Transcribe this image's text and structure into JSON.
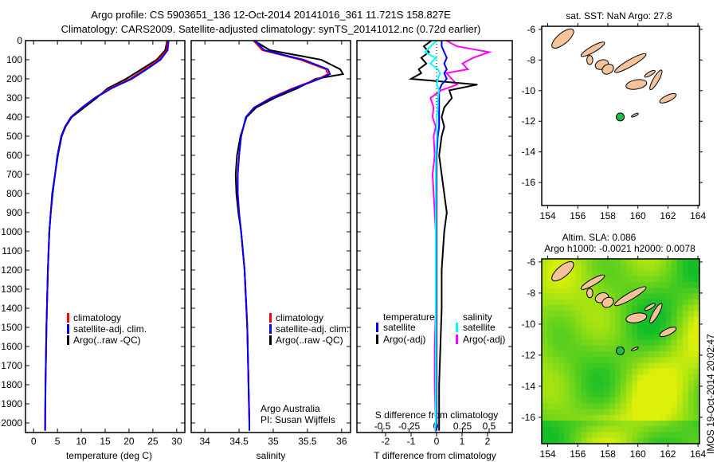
{
  "title_line1": "Argo profile: CS 5903651_136 12-Oct-2014 20141016_361 11.721S 158.827E",
  "title_line2": "Climatology: CARS2009. Satellite-adjusted climatology: synTS_20141012.nc (0.72d earlier)",
  "colors": {
    "climatology": "#ff0000",
    "satellite": "#0000ff",
    "argo": "#000000",
    "sal_satellite": "#00ffff",
    "sal_argo": "#ff00ff"
  },
  "chart_data": [
    {
      "type": "line",
      "xlabel": "temperature (deg C)",
      "ylabel": "",
      "xlim": [
        -1.7,
        31.7
      ],
      "ylim": [
        2050,
        0
      ],
      "xticks": [
        "0",
        "5",
        "10",
        "15",
        "20",
        "25",
        "30"
      ],
      "xtick_values": [
        0,
        5,
        10,
        15,
        20,
        25,
        30
      ],
      "yticks": [
        "0",
        "100",
        "200",
        "300",
        "400",
        "500",
        "600",
        "700",
        "800",
        "900",
        "1000",
        "1100",
        "1200",
        "1300",
        "1400",
        "1500",
        "1600",
        "1700",
        "1800",
        "1900",
        "2000"
      ],
      "ytick_values": [
        0,
        100,
        200,
        300,
        400,
        500,
        600,
        700,
        800,
        900,
        1000,
        1100,
        1200,
        1300,
        1400,
        1500,
        1600,
        1700,
        1800,
        1900,
        2000
      ],
      "legend": [
        "climatology",
        "satellite-adj. clim.",
        "Argo(..raw -QC)"
      ],
      "depth": [
        0,
        50,
        100,
        150,
        200,
        250,
        300,
        350,
        400,
        450,
        500,
        600,
        700,
        800,
        900,
        1000,
        1200,
        1500,
        1800,
        2040
      ],
      "series": [
        {
          "name": "climatology",
          "values": [
            28.1,
            27.9,
            26.2,
            23.3,
            20.2,
            16.0,
            12.8,
            10.1,
            7.8,
            6.6,
            5.8,
            5.0,
            4.5,
            4.0,
            3.6,
            3.3,
            3.0,
            2.7,
            2.5,
            2.4
          ]
        },
        {
          "name": "satellite-adj. clim.",
          "values": [
            28.3,
            28.1,
            26.6,
            23.7,
            20.6,
            16.3,
            12.9,
            10.2,
            7.9,
            6.6,
            5.8,
            5.0,
            4.5,
            4.0,
            3.6,
            3.3,
            3.0,
            2.7,
            2.5,
            2.4
          ]
        },
        {
          "name": "Argo(..raw -QC)",
          "values": [
            28.0,
            27.6,
            25.8,
            22.6,
            19.4,
            15.5,
            13.2,
            10.6,
            8.0,
            6.7,
            5.9,
            5.1,
            4.5,
            3.9,
            3.6,
            3.3,
            3.0,
            2.7,
            2.5,
            2.4
          ]
        }
      ]
    },
    {
      "type": "line",
      "xlabel": "salinity",
      "xlim": [
        33.8,
        36.13
      ],
      "ylim": [
        2050,
        0
      ],
      "xticks": [
        "34",
        "34.5",
        "35",
        "35.5",
        "36"
      ],
      "xtick_values": [
        34,
        34.5,
        35,
        35.5,
        36
      ],
      "legend": [
        "climatology",
        "satellite-adj. clim.",
        "Argo(..raw -QC)"
      ],
      "annotation1": "Argo Australia",
      "annotation2": "PI: Susan Wijffels",
      "depth": [
        0,
        50,
        100,
        150,
        175,
        200,
        250,
        300,
        350,
        400,
        500,
        600,
        700,
        800,
        900,
        1000,
        1200,
        1500,
        2000,
        2040
      ],
      "series": [
        {
          "name": "climatology",
          "values": [
            34.71,
            34.84,
            35.4,
            35.77,
            35.8,
            35.66,
            35.28,
            34.96,
            34.72,
            34.6,
            34.53,
            34.5,
            34.48,
            34.48,
            34.5,
            34.53,
            34.58,
            34.62,
            34.65,
            34.65
          ]
        },
        {
          "name": "satellite-adj. clim.",
          "values": [
            34.73,
            34.87,
            35.44,
            35.8,
            35.83,
            35.68,
            35.3,
            34.98,
            34.72,
            34.6,
            34.53,
            34.5,
            34.48,
            34.48,
            34.5,
            34.53,
            34.58,
            34.62,
            34.65,
            34.65
          ]
        },
        {
          "name": "Argo(..raw -QC)",
          "values": [
            34.72,
            34.95,
            35.7,
            35.98,
            36.02,
            35.62,
            35.35,
            35.02,
            34.75,
            34.61,
            34.52,
            34.47,
            34.45,
            34.46,
            34.49,
            34.53,
            34.58,
            34.62,
            34.65,
            34.65
          ]
        }
      ]
    },
    {
      "type": "line",
      "xlabel": "T difference from climatology",
      "xlabel_top": "S difference from climatology",
      "xlim": [
        -3.125,
        2.97
      ],
      "xlim_s": [
        -0.5,
        0.5
      ],
      "ylim": [
        2050,
        0
      ],
      "xticks": [
        "-2",
        "-1",
        "0",
        "1",
        "2"
      ],
      "xtick_values": [
        -2,
        -1,
        0,
        1,
        2
      ],
      "xticks_s": [
        "-0.5",
        "-0.25",
        "0",
        "0.25",
        "0.5"
      ],
      "xtick_values_s": [
        -0.5,
        -0.25,
        0,
        0.25,
        0.5
      ],
      "legend_temperature_title": "temperature",
      "legend_salinity_title": "salinity",
      "legend_satellite": "satellite",
      "legend_argo": "Argo(-adj)",
      "depth": [
        0,
        30,
        60,
        90,
        120,
        150,
        170,
        200,
        230,
        260,
        300,
        350,
        400,
        450,
        500,
        600,
        700,
        800,
        900,
        1000,
        1200,
        1400,
        1600,
        1800,
        2000,
        2040
      ],
      "series": [
        {
          "name": "T satellite",
          "values": [
            0.2,
            0.2,
            0.3,
            0.4,
            0.3,
            0.4,
            0.3,
            0.4,
            0.2,
            0.1,
            0.1,
            0.1,
            0.1,
            0.1,
            0.05,
            0.0,
            0.0,
            0.0,
            0.0,
            0.0,
            0.0,
            0.0,
            0.0,
            0.0,
            0.0,
            0.0
          ]
        },
        {
          "name": "T Argo(-adj)",
          "values": [
            -0.2,
            -0.5,
            -0.3,
            -0.6,
            -0.4,
            -0.7,
            -0.6,
            -1.0,
            1.6,
            0.5,
            0.6,
            0.3,
            0.2,
            0.3,
            0.2,
            0.1,
            0.2,
            0.3,
            0.4,
            0.3,
            0.2,
            0.2,
            0.15,
            0.1,
            0.1,
            0.1
          ]
        },
        {
          "name": "S satellite",
          "values": [
            0.01,
            -0.05,
            -0.1,
            0.0,
            -0.05,
            0.02,
            0.04,
            0.02,
            0.01,
            0.03,
            0.02,
            0.02,
            0.01,
            0.01,
            0.01,
            0.0,
            0.0,
            0.0,
            0.0,
            0.0,
            0.0,
            0.0,
            0.0,
            0.0,
            0.0,
            -0.01
          ]
        },
        {
          "name": "S Argo(-adj)",
          "values": [
            0.1,
            0.2,
            0.5,
            0.35,
            0.25,
            0.3,
            0.1,
            0.15,
            0.2,
            0.05,
            -0.05,
            -0.02,
            -0.03,
            0.0,
            -0.02,
            -0.01,
            -0.03,
            -0.02,
            -0.01,
            0.0,
            0.0,
            0.0,
            -0.01,
            -0.01,
            0.0,
            0.0
          ]
        }
      ]
    },
    {
      "type": "scatter",
      "title": "sat. SST: NaN Argo: 27.8",
      "xlim": [
        153.6,
        164.1
      ],
      "ylim": [
        -17.5,
        -5.8
      ],
      "xticks": [
        "154",
        "156",
        "158",
        "160",
        "162",
        "164"
      ],
      "xtick_values": [
        154,
        156,
        158,
        160,
        162,
        164
      ],
      "yticks": [
        "-6",
        "-8",
        "-10",
        "-12",
        "-14",
        "-16"
      ],
      "ytick_values": [
        -6,
        -8,
        -10,
        -12,
        -14,
        -16
      ],
      "points": [
        {
          "lon": 158.827,
          "lat": -11.721
        }
      ]
    },
    {
      "type": "heatmap",
      "title1": "Altim. SLA: 0.086",
      "title2": "Argo h1000: -0.0021 h2000: 0.0078",
      "xlim": [
        153.6,
        164.1
      ],
      "ylim": [
        -17.7,
        -5.8
      ],
      "xticks": [
        "154",
        "156",
        "158",
        "160",
        "162",
        "164"
      ],
      "xtick_values": [
        154,
        156,
        158,
        160,
        162,
        164
      ],
      "yticks": [
        "-6",
        "-8",
        "-10",
        "-12",
        "-14",
        "-16"
      ],
      "ytick_values": [
        -6,
        -8,
        -10,
        -12,
        -14,
        -16
      ],
      "points": [
        {
          "lon": 158.827,
          "lat": -11.721
        }
      ]
    }
  ],
  "footer": "IMOS 19-Oct-2014 20:02:47"
}
